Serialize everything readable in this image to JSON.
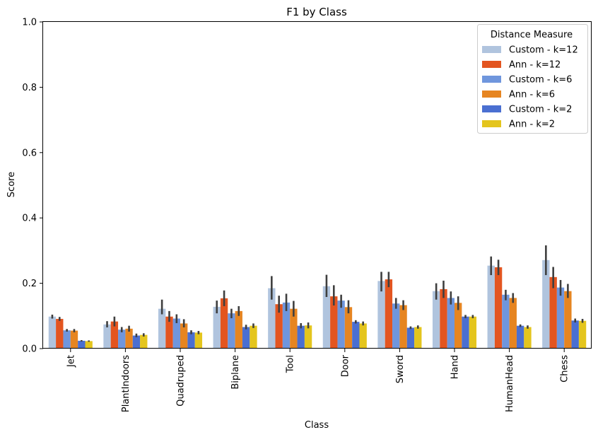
{
  "chart_data": {
    "type": "bar",
    "title": "F1 by Class",
    "xlabel": "Class",
    "ylabel": "Score",
    "ylim": [
      0,
      1.0
    ],
    "yticks": [
      "0.0",
      "0.2",
      "0.4",
      "0.6",
      "0.8",
      "1.0"
    ],
    "grid": false,
    "legend": {
      "title": "Distance Measure",
      "placement": "top-right"
    },
    "categories": [
      "Jet",
      "PlantIndoors",
      "Quadruped",
      "Biplane",
      "Tool",
      "Door",
      "Sword",
      "Hand",
      "HumanHead",
      "Chess"
    ],
    "series": [
      {
        "name": "Custom - k=12",
        "color": "#b0c4de",
        "values": [
          0.098,
          0.074,
          0.122,
          0.128,
          0.185,
          0.191,
          0.207,
          0.176,
          0.254,
          0.271
        ],
        "err": [
          [
            0.092,
            0.104
          ],
          [
            0.065,
            0.084
          ],
          [
            0.105,
            0.15
          ],
          [
            0.108,
            0.147
          ],
          [
            0.15,
            0.222
          ],
          [
            0.158,
            0.226
          ],
          [
            0.175,
            0.235
          ],
          [
            0.15,
            0.2
          ],
          [
            0.225,
            0.282
          ],
          [
            0.225,
            0.316
          ]
        ]
      },
      {
        "name": "Ann - k=12",
        "color": "#e35520",
        "values": [
          0.091,
          0.083,
          0.098,
          0.154,
          0.136,
          0.16,
          0.212,
          0.182,
          0.249,
          0.219
        ],
        "err": [
          [
            0.085,
            0.097
          ],
          [
            0.068,
            0.098
          ],
          [
            0.082,
            0.115
          ],
          [
            0.13,
            0.178
          ],
          [
            0.11,
            0.162
          ],
          [
            0.132,
            0.194
          ],
          [
            0.188,
            0.235
          ],
          [
            0.155,
            0.208
          ],
          [
            0.225,
            0.272
          ],
          [
            0.185,
            0.25
          ]
        ]
      },
      {
        "name": "Custom - k=6",
        "color": "#6f96dd",
        "values": [
          0.056,
          0.058,
          0.092,
          0.108,
          0.141,
          0.147,
          0.138,
          0.155,
          0.165,
          0.187
        ],
        "err": [
          [
            0.052,
            0.06
          ],
          [
            0.05,
            0.066
          ],
          [
            0.078,
            0.105
          ],
          [
            0.093,
            0.122
          ],
          [
            0.115,
            0.168
          ],
          [
            0.125,
            0.165
          ],
          [
            0.122,
            0.155
          ],
          [
            0.135,
            0.175
          ],
          [
            0.148,
            0.18
          ],
          [
            0.162,
            0.21
          ]
        ]
      },
      {
        "name": "Ann - k=6",
        "color": "#e68521",
        "values": [
          0.055,
          0.061,
          0.077,
          0.115,
          0.122,
          0.127,
          0.133,
          0.14,
          0.155,
          0.176
        ],
        "err": [
          [
            0.05,
            0.06
          ],
          [
            0.052,
            0.07
          ],
          [
            0.065,
            0.09
          ],
          [
            0.1,
            0.13
          ],
          [
            0.098,
            0.146
          ],
          [
            0.108,
            0.148
          ],
          [
            0.118,
            0.148
          ],
          [
            0.118,
            0.16
          ],
          [
            0.14,
            0.17
          ],
          [
            0.155,
            0.198
          ]
        ]
      },
      {
        "name": "Custom - k=2",
        "color": "#4a6fd1",
        "values": [
          0.024,
          0.04,
          0.05,
          0.066,
          0.07,
          0.082,
          0.064,
          0.098,
          0.07,
          0.086
        ],
        "err": [
          [
            0.022,
            0.026
          ],
          [
            0.035,
            0.046
          ],
          [
            0.044,
            0.056
          ],
          [
            0.059,
            0.073
          ],
          [
            0.062,
            0.078
          ],
          [
            0.077,
            0.087
          ],
          [
            0.06,
            0.068
          ],
          [
            0.093,
            0.103
          ],
          [
            0.066,
            0.074
          ],
          [
            0.08,
            0.092
          ]
        ]
      },
      {
        "name": "Ann - k=2",
        "color": "#e4c51d",
        "values": [
          0.023,
          0.042,
          0.049,
          0.07,
          0.071,
          0.077,
          0.066,
          0.098,
          0.066,
          0.085
        ],
        "err": [
          [
            0.021,
            0.025
          ],
          [
            0.037,
            0.047
          ],
          [
            0.044,
            0.054
          ],
          [
            0.063,
            0.077
          ],
          [
            0.062,
            0.08
          ],
          [
            0.071,
            0.083
          ],
          [
            0.061,
            0.071
          ],
          [
            0.093,
            0.103
          ],
          [
            0.061,
            0.071
          ],
          [
            0.079,
            0.091
          ]
        ]
      }
    ]
  }
}
